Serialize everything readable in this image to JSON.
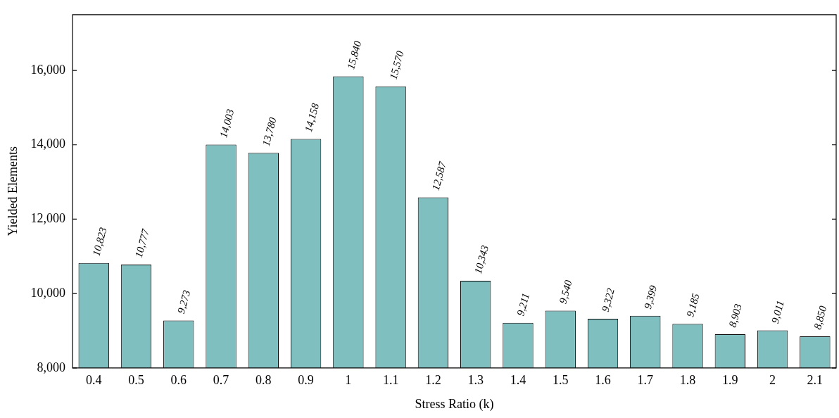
{
  "chart_data": {
    "type": "bar",
    "xlabel": "Stress Ratio (k)",
    "ylabel": "Yielded Elements",
    "categories": [
      "0.4",
      "0.5",
      "0.6",
      "0.7",
      "0.8",
      "0.9",
      "1",
      "1.1",
      "1.2",
      "1.3",
      "1.4",
      "1.5",
      "1.6",
      "1.7",
      "1.8",
      "1.9",
      "2",
      "2.1"
    ],
    "values": [
      10823,
      10777,
      9273,
      14003,
      13780,
      14158,
      15840,
      15570,
      12587,
      10343,
      9211,
      9540,
      9322,
      9399,
      9185,
      8903,
      9011,
      8850
    ],
    "value_labels": [
      "10,823",
      "10,777",
      "9,273",
      "14,003",
      "13,780",
      "14,158",
      "15,840",
      "15,570",
      "12,587",
      "10,343",
      "9,211",
      "9,540",
      "9,322",
      "9,399",
      "9,185",
      "8,903",
      "9,011",
      "8,850"
    ],
    "color": "#7fbfbf",
    "ylim": [
      8000,
      17500
    ],
    "yticks": [
      {
        "value": 8000,
        "label": "8,000"
      },
      {
        "value": 10000,
        "label": "10,000"
      },
      {
        "value": 12000,
        "label": "12,000"
      },
      {
        "value": 14000,
        "label": "14,000"
      },
      {
        "value": 16000,
        "label": "16,000"
      }
    ],
    "grid": false,
    "legend": false
  }
}
